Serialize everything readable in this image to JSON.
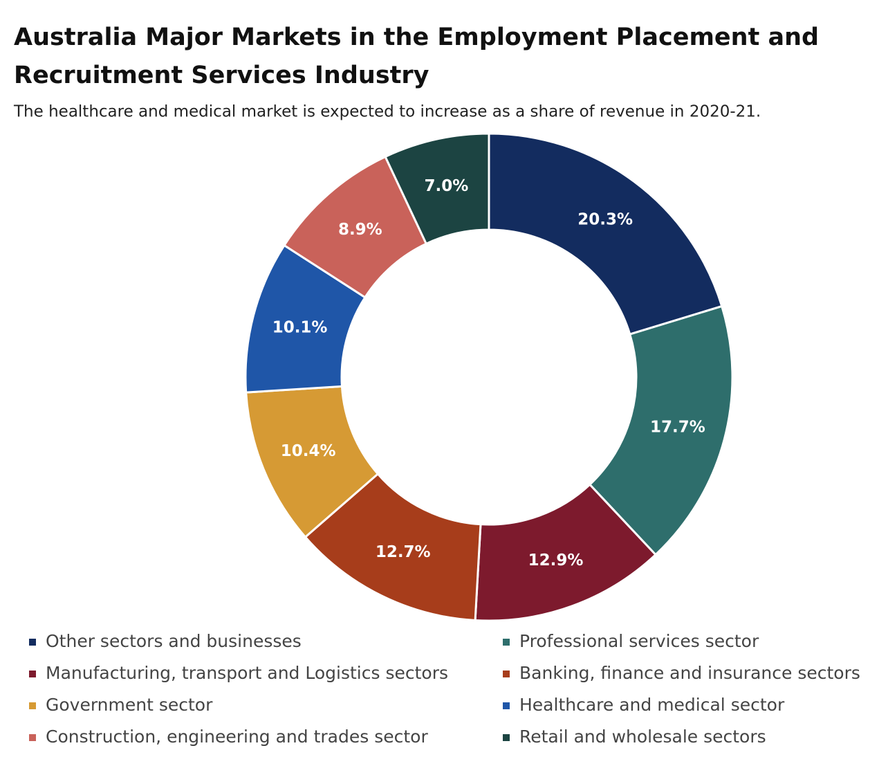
{
  "chart_data": {
    "type": "donut",
    "title": "Australia Major Markets in the Employment Placement and Recruitment Services Industry",
    "subtitle": "The healthcare and medical market is expected to increase as a share of revenue in 2020-21.",
    "categories": [
      "Other sectors and businesses",
      "Professional services sector",
      "Manufacturing, transport and Logistics sectors",
      "Banking, finance and insurance sectors",
      "Government sector",
      "Healthcare and medical sector",
      "Construction, engineering and trades sector",
      "Retail and wholesale sectors"
    ],
    "values": [
      20.3,
      17.7,
      12.9,
      12.7,
      10.4,
      10.1,
      8.9,
      7.0
    ],
    "value_labels": [
      "20.3%",
      "17.7%",
      "12.9%",
      "12.7%",
      "10.4%",
      "10.1%",
      "8.9%",
      "7.0%"
    ],
    "colors": [
      "#132c5f",
      "#2e6e6c",
      "#7d1a2d",
      "#a73d1b",
      "#d69a34",
      "#1f56a8",
      "#c9625a",
      "#1c4442"
    ]
  }
}
